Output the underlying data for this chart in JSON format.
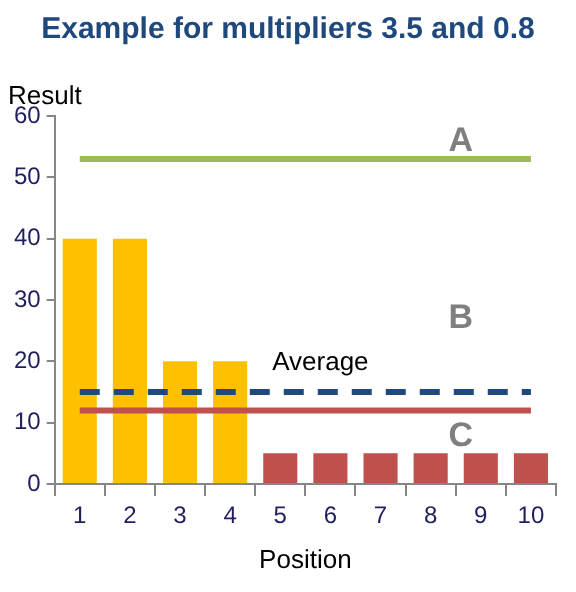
{
  "chart_data": {
    "type": "bar",
    "title": "Example for multipliers 3.5 and 0.8",
    "xlabel": "Position",
    "ylabel": "Result",
    "categories": [
      "1",
      "2",
      "3",
      "4",
      "5",
      "6",
      "7",
      "8",
      "9",
      "10"
    ],
    "series": [
      {
        "values": [
          40,
          40,
          20,
          20,
          5,
          5,
          5,
          5,
          5,
          5
        ],
        "colors": [
          "#ffc000",
          "#ffc000",
          "#ffc000",
          "#ffc000",
          "#c0504d",
          "#c0504d",
          "#c0504d",
          "#c0504d",
          "#c0504d",
          "#c0504d"
        ]
      },
      {
        "type": "line",
        "color": "#9bbb59",
        "values": [
          53,
          53,
          53,
          53,
          53,
          53,
          53,
          53,
          53,
          53
        ]
      },
      {
        "type": "line",
        "color": "#1f497d",
        "line_style": "dashed",
        "values": [
          15,
          15,
          15,
          15,
          15,
          15,
          15,
          15,
          15,
          15
        ]
      },
      {
        "type": "line",
        "color": "#c0504d",
        "values": [
          12,
          12,
          12,
          12,
          12,
          12,
          12,
          12,
          12,
          12
        ]
      }
    ],
    "ylim": [
      0,
      60
    ],
    "yticks": [
      0,
      10,
      20,
      30,
      40,
      50,
      60
    ],
    "grid": false,
    "legend": false,
    "marker": "none",
    "annotations": [
      "A",
      "B",
      "Average",
      "C"
    ]
  }
}
